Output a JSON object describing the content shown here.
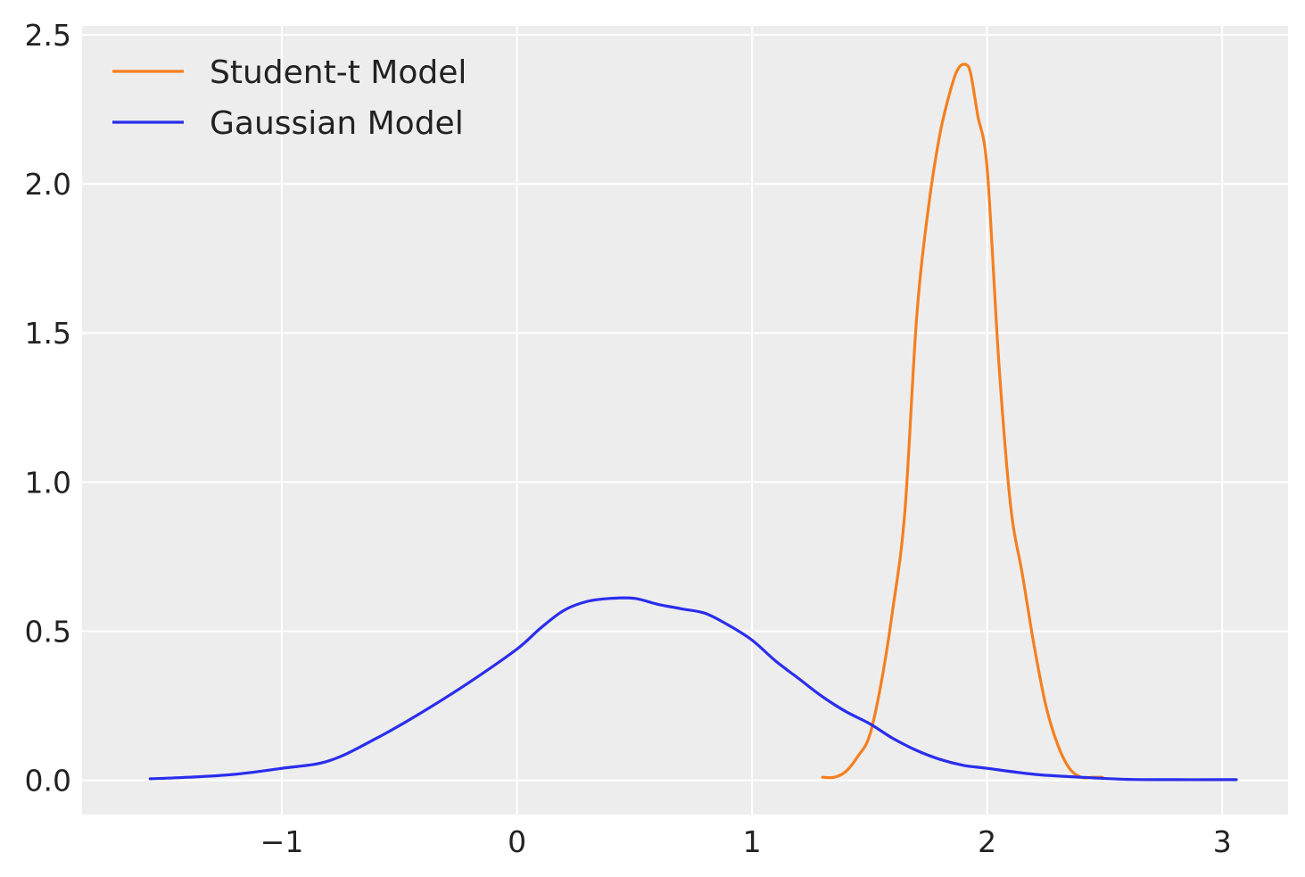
{
  "chart_data": {
    "type": "line",
    "title": "",
    "xlabel": "",
    "ylabel": "",
    "xlim": [
      -1.85,
      3.28
    ],
    "ylim": [
      -0.115,
      2.53
    ],
    "xticks": [
      -1,
      0,
      1,
      2,
      3
    ],
    "xtick_labels": [
      "−1",
      "0",
      "1",
      "2",
      "3"
    ],
    "yticks": [
      0.0,
      0.5,
      1.0,
      1.5,
      2.0,
      2.5
    ],
    "ytick_labels": [
      "0.0",
      "0.5",
      "1.0",
      "1.5",
      "2.0",
      "2.5"
    ],
    "grid": true,
    "background": "#ededed",
    "legend_position": "top-left",
    "series": [
      {
        "name": "Student-t Model",
        "color": "#f57f1f",
        "x": [
          1.3,
          1.35,
          1.4,
          1.45,
          1.5,
          1.55,
          1.6,
          1.65,
          1.7,
          1.75,
          1.8,
          1.85,
          1.88,
          1.91,
          1.93,
          1.96,
          2.0,
          2.05,
          2.1,
          2.15,
          2.2,
          2.25,
          2.3,
          2.35,
          2.4,
          2.45,
          2.49
        ],
        "y": [
          0.01,
          0.01,
          0.03,
          0.08,
          0.15,
          0.33,
          0.58,
          0.9,
          1.55,
          1.92,
          2.17,
          2.33,
          2.39,
          2.4,
          2.37,
          2.23,
          2.05,
          1.4,
          0.92,
          0.69,
          0.45,
          0.25,
          0.12,
          0.04,
          0.01,
          0.01,
          0.01
        ]
      },
      {
        "name": "Gaussian Model",
        "color": "#2a2eec",
        "x": [
          -1.56,
          -1.4,
          -1.2,
          -1.0,
          -0.8,
          -0.6,
          -0.4,
          -0.2,
          0.0,
          0.1,
          0.2,
          0.3,
          0.4,
          0.5,
          0.6,
          0.7,
          0.8,
          0.9,
          1.0,
          1.1,
          1.2,
          1.3,
          1.4,
          1.5,
          1.6,
          1.7,
          1.8,
          1.9,
          2.0,
          2.2,
          2.4,
          2.6,
          2.8,
          3.0,
          3.06
        ],
        "y": [
          0.005,
          0.01,
          0.02,
          0.04,
          0.065,
          0.14,
          0.23,
          0.33,
          0.44,
          0.51,
          0.57,
          0.6,
          0.61,
          0.61,
          0.59,
          0.575,
          0.56,
          0.52,
          0.47,
          0.4,
          0.34,
          0.28,
          0.23,
          0.19,
          0.14,
          0.1,
          0.07,
          0.05,
          0.04,
          0.02,
          0.01,
          0.003,
          0.002,
          0.002,
          0.002
        ]
      }
    ]
  }
}
